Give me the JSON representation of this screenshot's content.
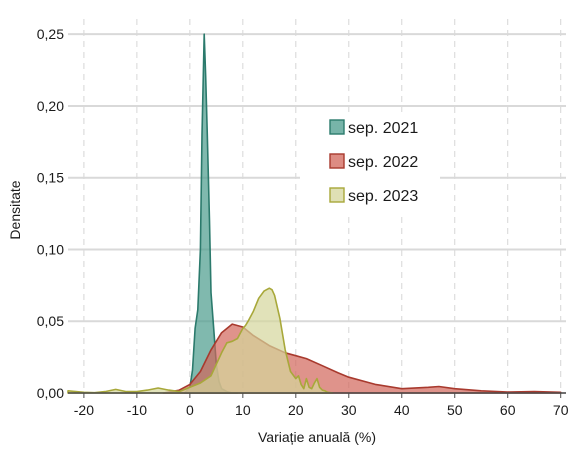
{
  "chart_data": {
    "type": "area",
    "title": "",
    "xlabel": "Variație anuală (%)",
    "ylabel": "Densitate",
    "xlim": [
      -23,
      71
    ],
    "ylim": [
      0,
      0.255
    ],
    "x_ticks": [
      -20,
      -10,
      0,
      10,
      20,
      30,
      40,
      50,
      60,
      70
    ],
    "x_tick_labels": [
      "-20",
      "-10",
      "0",
      "10",
      "20",
      "30",
      "40",
      "50",
      "60",
      "70"
    ],
    "y_ticks": [
      0,
      0.05,
      0.1,
      0.15,
      0.2,
      0.25
    ],
    "y_tick_labels": [
      "0,00",
      "0,05",
      "0,10",
      "0,15",
      "0,20",
      "0,25"
    ],
    "grid": "horizontal solid, vertical dashed",
    "legend_position": "center-right",
    "series": [
      {
        "name": "sep. 2021",
        "fill": "#4a9b8c",
        "stroke": "#2b7a6c",
        "x": [
          -1,
          0,
          0.5,
          1,
          1.5,
          2,
          2.3,
          2.7,
          3,
          3.3,
          3.7,
          4,
          4.5,
          5,
          5.5,
          6,
          7,
          8,
          9
        ],
        "y": [
          0,
          0.004,
          0.016,
          0.045,
          0.058,
          0.1,
          0.18,
          0.25,
          0.22,
          0.18,
          0.12,
          0.07,
          0.045,
          0.02,
          0.008,
          0.003,
          0.001,
          0.0,
          0.0
        ]
      },
      {
        "name": "sep. 2022",
        "fill": "#d2655a",
        "stroke": "#a83a2e",
        "x": [
          -5,
          -2,
          0,
          2,
          4,
          6,
          8,
          10,
          12,
          15,
          18,
          20,
          22,
          25,
          28,
          30,
          35,
          40,
          45,
          47,
          50,
          55,
          60,
          65,
          70
        ],
        "y": [
          0,
          0.002,
          0.006,
          0.015,
          0.03,
          0.042,
          0.048,
          0.046,
          0.04,
          0.033,
          0.028,
          0.026,
          0.024,
          0.019,
          0.014,
          0.011,
          0.006,
          0.003,
          0.004,
          0.0045,
          0.003,
          0.0015,
          0.0007,
          0.001,
          0.0005
        ]
      },
      {
        "name": "sep. 2023",
        "fill": "#d4d59b",
        "stroke": "#a8a83a",
        "x": [
          -23,
          -20,
          -18,
          -16,
          -14,
          -12,
          -10,
          -8,
          -6,
          -4,
          -2,
          0,
          2,
          4,
          6,
          7,
          8,
          9,
          10,
          10.5,
          11,
          12,
          13,
          14,
          15,
          15.5,
          16,
          17,
          18,
          19,
          20,
          20.5,
          21,
          21.5,
          22,
          22.5,
          23,
          23.5,
          24,
          24.5,
          25,
          25.5,
          26,
          27
        ],
        "y": [
          0.0015,
          0.0005,
          0.0002,
          0.001,
          0.0025,
          0.001,
          0.001,
          0.002,
          0.0035,
          0.002,
          0.001,
          0.004,
          0.007,
          0.012,
          0.028,
          0.035,
          0.036,
          0.038,
          0.045,
          0.047,
          0.05,
          0.057,
          0.066,
          0.071,
          0.073,
          0.072,
          0.068,
          0.052,
          0.03,
          0.015,
          0.01,
          0.012,
          0.006,
          0.003,
          0.01,
          0.004,
          0.003,
          0.007,
          0.01,
          0.004,
          0.002,
          0.0015,
          0.0005,
          0.0
        ]
      }
    ]
  }
}
